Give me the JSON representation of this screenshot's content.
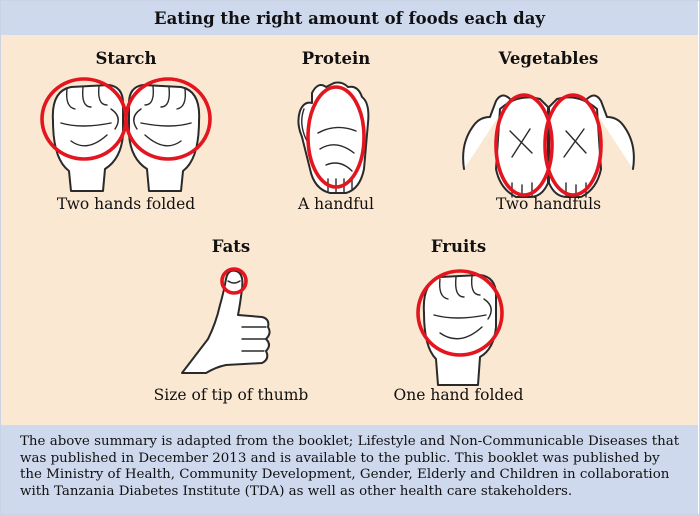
{
  "header": {
    "title": "Eating the right amount of foods each day"
  },
  "items": [
    {
      "title": "Starch",
      "caption": "Two hands folded",
      "icon": "two-fists-icon"
    },
    {
      "title": "Protein",
      "caption": "A handful",
      "icon": "open-palm-icon"
    },
    {
      "title": "Vegetables",
      "caption": "Two handfuls",
      "icon": "two-palms-icon"
    },
    {
      "title": "Fats",
      "caption": "Size of tip of thumb",
      "icon": "thumbs-up-icon"
    },
    {
      "title": "Fruits",
      "caption": "One hand folded",
      "icon": "fist-icon"
    }
  ],
  "footer": {
    "text": "The above summary is adapted from the booklet; Lifestyle and Non-Communicable Diseases that was published in December 2013 and is available to the public. This booklet was published by the Ministry of Health, Community Development, Gender, Elderly and Children in collaboration with Tanzania Diabetes Institute (TDA) as well as other health care stakeholders."
  },
  "colors": {
    "header_bg": "#cfd9ee",
    "panel_bg": "#fbe8d3",
    "highlight": "#e3151f"
  }
}
